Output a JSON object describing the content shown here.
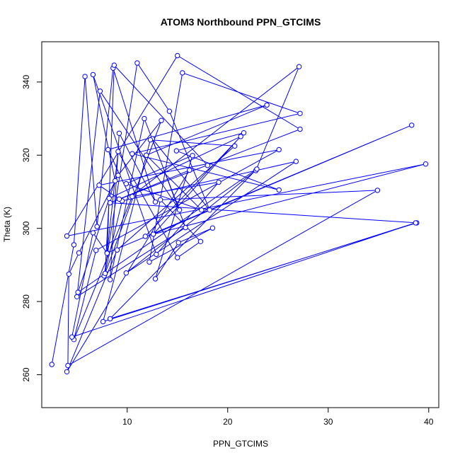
{
  "chart_data": {
    "type": "line",
    "title": "ATOM3 Northbound PPN_GTCIMS",
    "xlabel": "PPN_GTCIMS",
    "ylabel": "Theta (K)",
    "xlim": [
      1.5,
      41.0
    ],
    "ylim": [
      251,
      351
    ],
    "xticks": [
      10,
      20,
      30,
      40
    ],
    "yticks": [
      260,
      280,
      300,
      320,
      340
    ],
    "grid": false,
    "legend": "none",
    "line_style": "lines-and-points",
    "color": "#0000ff",
    "series": [
      {
        "points": [
          [
            2.5,
            262.8
          ],
          [
            4.7,
            295.5
          ],
          [
            5.8,
            341.5
          ],
          [
            7.0,
            300.5
          ],
          [
            8.6,
            343.8
          ],
          [
            12.8,
            307.2
          ],
          [
            9.2,
            326.0
          ],
          [
            8.3,
            286.0
          ],
          [
            11.7,
            330.0
          ],
          [
            15.2,
            305.0
          ],
          [
            7.3,
            337.5
          ],
          [
            5.0,
            281.3
          ],
          [
            15.8,
            300.2
          ],
          [
            12.5,
            324.5
          ],
          [
            18.2,
            305.0
          ],
          [
            14.2,
            332.0
          ],
          [
            11.0,
            345.2
          ],
          [
            7.7,
            287.0
          ],
          [
            9.5,
            307.5
          ],
          [
            26.8,
            318.3
          ],
          [
            9.9,
            287.8
          ],
          [
            22.8,
            315.8
          ],
          [
            27.1,
            344.2
          ],
          [
            10.3,
            308.5
          ],
          [
            8.1,
            321.5
          ],
          [
            23.9,
            333.7
          ],
          [
            11.9,
            320.0
          ],
          [
            17.4,
            305.0
          ],
          [
            9.9,
            312.2
          ],
          [
            16.5,
            319.9
          ],
          [
            12.8,
            286.2
          ],
          [
            15.1,
            296.1
          ],
          [
            18.5,
            300.1
          ],
          [
            12.2,
            290.8
          ],
          [
            15.5,
            342.5
          ],
          [
            27.2,
            331.4
          ],
          [
            10.5,
            320.4
          ],
          [
            25.1,
            310.5
          ],
          [
            14.9,
            321.2
          ],
          [
            21.6,
            326.1
          ],
          [
            12.6,
            298.4
          ],
          [
            38.3,
            328.2
          ],
          [
            8.0,
            293.3
          ],
          [
            9.1,
            321.0
          ],
          [
            15.0,
            292.0
          ],
          [
            17.3,
            296.4
          ],
          [
            13.3,
            307.8
          ],
          [
            34.9,
            310.4
          ],
          [
            4.1,
            262.5
          ],
          [
            4.2,
            287.5
          ],
          [
            5.2,
            293.3
          ],
          [
            9.1,
            314.5
          ],
          [
            13.4,
            329.5
          ],
          [
            7.8,
            287.7
          ],
          [
            8.2,
            308.2
          ],
          [
            21.3,
            325.1
          ],
          [
            11.8,
            297.8
          ],
          [
            39.7,
            317.6
          ],
          [
            4.0,
            297.9
          ],
          [
            15.0,
            347.2
          ],
          [
            27.2,
            327.1
          ],
          [
            8.3,
            307.0
          ],
          [
            38.8,
            301.5
          ],
          [
            8.3,
            275.3
          ],
          [
            22.9,
            316.2
          ],
          [
            5.1,
            282.5
          ],
          [
            8.8,
            313.0
          ],
          [
            6.6,
            342.0
          ],
          [
            12.9,
            292.9
          ],
          [
            19.1,
            312.6
          ],
          [
            10.5,
            308.7
          ],
          [
            4.7,
            269.6
          ],
          [
            6.9,
            294.0
          ],
          [
            25.1,
            321.5
          ],
          [
            7.2,
            311.8
          ],
          [
            9.2,
            308.0
          ],
          [
            16.2,
            315.9
          ],
          [
            4.0,
            260.8
          ],
          [
            9.0,
            294.1
          ],
          [
            20.7,
            322.5
          ],
          [
            12.3,
            324.2
          ],
          [
            7.6,
            274.5
          ],
          [
            38.7,
            301.5
          ],
          [
            4.5,
            270.3
          ],
          [
            6.6,
            298.8
          ],
          [
            8.0,
            293.2
          ],
          [
            8.7,
            344.6
          ],
          [
            18.0,
            317.2
          ]
        ]
      }
    ]
  }
}
